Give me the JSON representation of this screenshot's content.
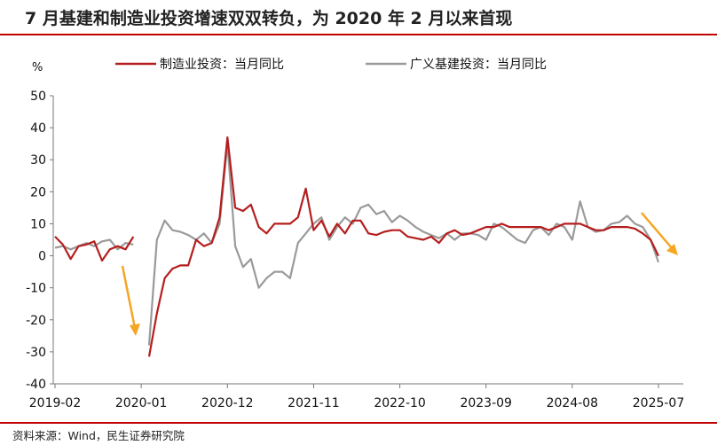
{
  "title": "7 月基建和制造业投资增速双双转负，为 2020 年 2 月以来首现",
  "source": "资料来源：Wind，民生证券研究院",
  "colors": {
    "manufacturing": "#b51e1e",
    "infrastructure": "#9a9a9a",
    "arrow": "#f5a623",
    "accent": "#c00000"
  },
  "chart_data": {
    "type": "line",
    "unit_label": "%",
    "ylim": [
      -40,
      50
    ],
    "yticks": [
      50,
      40,
      30,
      20,
      10,
      0,
      -10,
      -20,
      -30,
      -40
    ],
    "xticks": [
      "2019-02",
      "2020-01",
      "2020-12",
      "2021-11",
      "2022-10",
      "2023-09",
      "2024-08",
      "2025-07"
    ],
    "legend_position": "top",
    "grid": false,
    "x": [
      "2019-02",
      "2019-03",
      "2019-04",
      "2019-05",
      "2019-06",
      "2019-07",
      "2019-08",
      "2019-09",
      "2019-10",
      "2019-11",
      "2019-12",
      "2020-01",
      "2020-02",
      "2020-03",
      "2020-04",
      "2020-05",
      "2020-06",
      "2020-07",
      "2020-08",
      "2020-09",
      "2020-10",
      "2020-11",
      "2020-12",
      "2021-01",
      "2021-02",
      "2021-03",
      "2021-04",
      "2021-05",
      "2021-06",
      "2021-07",
      "2021-08",
      "2021-09",
      "2021-10",
      "2021-11",
      "2021-12",
      "2022-01",
      "2022-02",
      "2022-03",
      "2022-04",
      "2022-05",
      "2022-06",
      "2022-07",
      "2022-08",
      "2022-09",
      "2022-10",
      "2022-11",
      "2022-12",
      "2023-01",
      "2023-02",
      "2023-03",
      "2023-04",
      "2023-05",
      "2023-06",
      "2023-07",
      "2023-08",
      "2023-09",
      "2023-10",
      "2023-11",
      "2023-12",
      "2024-01",
      "2024-02",
      "2024-03",
      "2024-04",
      "2024-05",
      "2024-06",
      "2024-07",
      "2024-08",
      "2024-09",
      "2024-10",
      "2024-11",
      "2024-12",
      "2025-01",
      "2025-02",
      "2025-03",
      "2025-04",
      "2025-05",
      "2025-06",
      "2025-07"
    ],
    "series": [
      {
        "name": "制造业投资：当月同比",
        "values": [
          6,
          3.5,
          -1,
          3,
          3.5,
          4.5,
          -1.5,
          2,
          3,
          2,
          6,
          null,
          -31.5,
          -18,
          -7,
          -4,
          -3,
          -3,
          5,
          3,
          4,
          12,
          37,
          15,
          14,
          16,
          9,
          7,
          10,
          10,
          10,
          12,
          21,
          8,
          11,
          6,
          10,
          7,
          11,
          11,
          7,
          6.5,
          7.5,
          8,
          8,
          6,
          5.5,
          5,
          6,
          4,
          7,
          8,
          6.5,
          7,
          8,
          9,
          9,
          10,
          9,
          9,
          9,
          9,
          9,
          8,
          9,
          10,
          10,
          10,
          9,
          8,
          8,
          9,
          9,
          9,
          8.5,
          7,
          5,
          0
        ]
      },
      {
        "name": "广义基建投资：当月同比",
        "values": [
          2.5,
          3,
          2,
          3,
          4,
          3,
          4.5,
          5,
          2,
          4,
          3.5,
          null,
          -28,
          5,
          11,
          8,
          7.5,
          6.5,
          5,
          7,
          4,
          10,
          35,
          3,
          -3.5,
          -1,
          -10,
          -7,
          -5,
          -5,
          -7,
          4,
          7,
          10,
          12,
          5,
          9,
          12,
          10,
          15,
          16,
          13,
          14,
          10.5,
          12.5,
          11,
          9,
          7.5,
          6.5,
          5.5,
          7,
          5,
          7,
          7,
          6.5,
          5,
          10,
          9,
          7,
          5,
          4,
          8,
          9,
          6.5,
          10,
          9,
          5,
          17,
          9,
          7.5,
          8,
          10,
          10.5,
          12.5,
          10,
          9,
          5,
          -2
        ]
      }
    ]
  }
}
